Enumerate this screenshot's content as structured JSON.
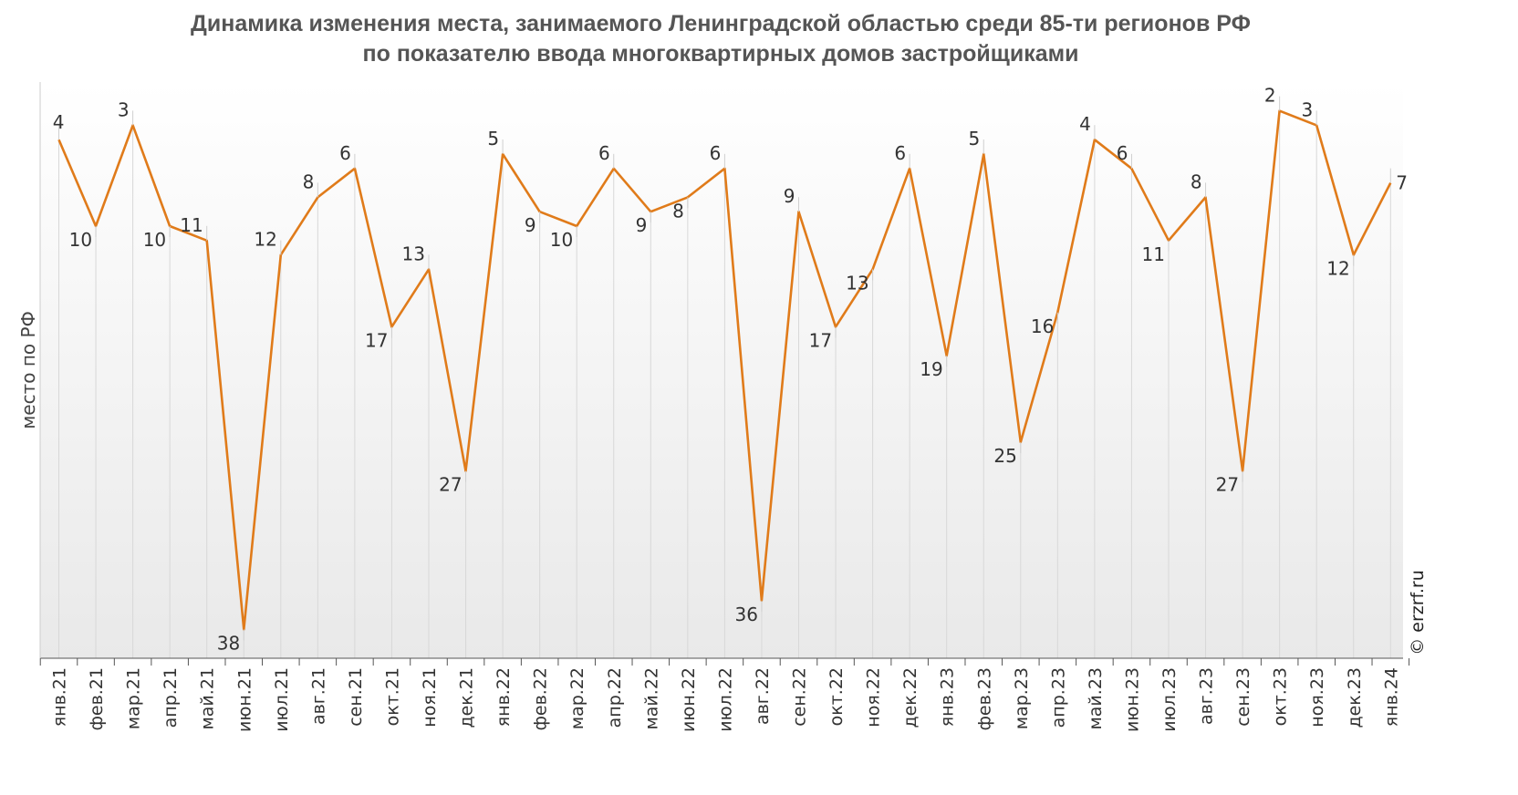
{
  "title": {
    "line1": "Динамика изменения места, занимаемого Ленинградской областью среди 85-ти регионов РФ",
    "line2": "по показателю ввода многоквартирных домов застройщиками"
  },
  "credit": "© erzrf.ru",
  "chart_data": {
    "type": "line",
    "title": "Динамика изменения места, занимаемого Ленинградской областью среди 85-ти регионов РФ по показателю ввода многоквартирных домов застройщиками",
    "ylabel": "место по РФ",
    "xlabel": "",
    "y_inverted": true,
    "ylim": [
      40,
      0
    ],
    "grid": "vertical",
    "legend": "none",
    "line_color": "#e07b1a",
    "categories": [
      "янв.21",
      "фев.21",
      "мар.21",
      "апр.21",
      "май.21",
      "июн.21",
      "июл.21",
      "авг.21",
      "сен.21",
      "окт.21",
      "ноя.21",
      "дек.21",
      "янв.22",
      "фев.22",
      "мар.22",
      "апр.22",
      "май.22",
      "июн.22",
      "июл.22",
      "авг.22",
      "сен.22",
      "окт.22",
      "ноя.22",
      "дек.22",
      "янв.23",
      "фев.23",
      "мар.23",
      "апр.23",
      "май.23",
      "июн.23",
      "июл.23",
      "авг.23",
      "сен.23",
      "окт.23",
      "ноя.23",
      "дек.23",
      "янв.24"
    ],
    "series": [
      {
        "values": [
          4,
          10,
          3,
          10,
          11,
          38,
          12,
          8,
          6,
          17,
          13,
          27,
          5,
          9,
          10,
          6,
          9,
          8,
          6,
          36,
          9,
          17,
          13,
          6,
          19,
          5,
          25,
          16,
          4,
          6,
          11,
          8,
          27,
          2,
          3,
          12,
          7
        ]
      }
    ]
  }
}
